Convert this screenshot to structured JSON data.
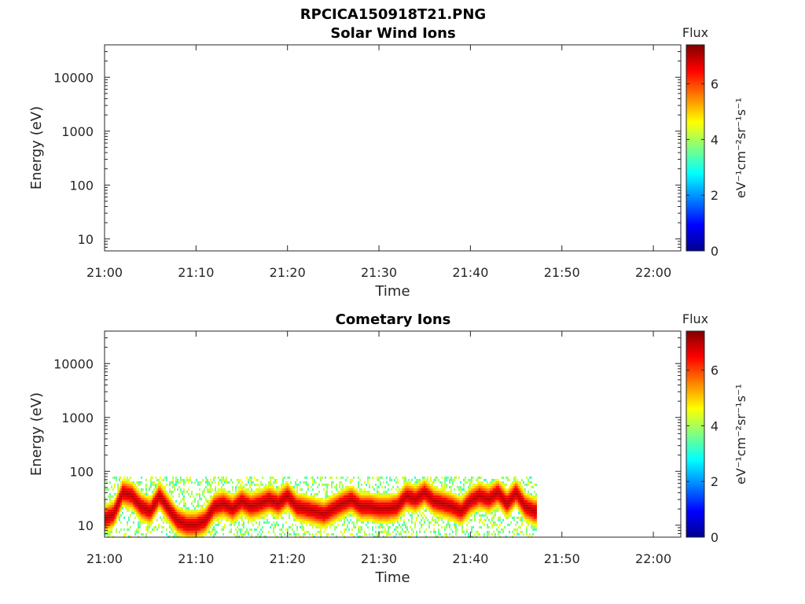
{
  "figure_title": "RPCICA150918T21.PNG",
  "colors": {
    "colormap": [
      "#00008f",
      "#0000ff",
      "#0080ff",
      "#00ffff",
      "#80ff80",
      "#ffff00",
      "#ff8000",
      "#ff0000",
      "#800000"
    ],
    "axis": "#262626"
  },
  "chart_data": [
    {
      "type": "heatmap",
      "title": "Solar Wind Ions",
      "xlabel": "Time",
      "ylabel": "Energy (eV)",
      "x_ticks": [
        "21:00",
        "21:10",
        "21:20",
        "21:30",
        "21:40",
        "21:50",
        "22:00"
      ],
      "x_range_minutes": [
        0,
        63
      ],
      "y_scale": "log",
      "y_range": [
        6,
        40000
      ],
      "y_ticks": [
        10,
        100,
        1000,
        10000
      ],
      "y_tick_labels": [
        "10",
        "100",
        "1000",
        "10000"
      ],
      "colorbar": {
        "title": "Flux",
        "unit": "eV⁻¹cm⁻²sr⁻¹s⁻¹",
        "range": [
          0,
          7.4
        ],
        "ticks": [
          0,
          2,
          4,
          6
        ],
        "tick_labels": [
          "0",
          "2",
          "4",
          "6"
        ]
      },
      "data_present": false,
      "peak_energy": []
    },
    {
      "type": "heatmap",
      "title": "Cometary Ions",
      "xlabel": "Time",
      "ylabel": "Energy (eV)",
      "x_ticks": [
        "21:00",
        "21:10",
        "21:20",
        "21:30",
        "21:40",
        "21:50",
        "22:00"
      ],
      "x_range_minutes": [
        0,
        63
      ],
      "y_scale": "log",
      "y_range": [
        6,
        40000
      ],
      "y_ticks": [
        10,
        100,
        1000,
        10000
      ],
      "y_tick_labels": [
        "10",
        "100",
        "1000",
        "10000"
      ],
      "colorbar": {
        "title": "Flux",
        "unit": "eV⁻¹cm⁻²sr⁻¹s⁻¹",
        "range": [
          0,
          7.4
        ],
        "ticks": [
          0,
          2,
          4,
          6
        ],
        "tick_labels": [
          "0",
          "2",
          "4",
          "6"
        ]
      },
      "data_present": true,
      "data_time_range_minutes": [
        0,
        47.2
      ],
      "data_energy_range_eV": [
        6,
        80
      ],
      "peak_energy": [
        {
          "t": 0,
          "e": 13
        },
        {
          "t": 1,
          "e": 16
        },
        {
          "t": 2,
          "e": 40
        },
        {
          "t": 3,
          "e": 35
        },
        {
          "t": 4,
          "e": 22
        },
        {
          "t": 5,
          "e": 18
        },
        {
          "t": 6,
          "e": 35
        },
        {
          "t": 7,
          "e": 20
        },
        {
          "t": 8,
          "e": 12
        },
        {
          "t": 9,
          "e": 10
        },
        {
          "t": 10,
          "e": 10
        },
        {
          "t": 11,
          "e": 12
        },
        {
          "t": 12,
          "e": 22
        },
        {
          "t": 13,
          "e": 25
        },
        {
          "t": 14,
          "e": 20
        },
        {
          "t": 15,
          "e": 28
        },
        {
          "t": 16,
          "e": 22
        },
        {
          "t": 17,
          "e": 25
        },
        {
          "t": 18,
          "e": 30
        },
        {
          "t": 19,
          "e": 25
        },
        {
          "t": 20,
          "e": 35
        },
        {
          "t": 21,
          "e": 22
        },
        {
          "t": 22,
          "e": 20
        },
        {
          "t": 23,
          "e": 18
        },
        {
          "t": 24,
          "e": 16
        },
        {
          "t": 25,
          "e": 20
        },
        {
          "t": 26,
          "e": 25
        },
        {
          "t": 27,
          "e": 30
        },
        {
          "t": 28,
          "e": 22
        },
        {
          "t": 29,
          "e": 22
        },
        {
          "t": 30,
          "e": 20
        },
        {
          "t": 31,
          "e": 20
        },
        {
          "t": 32,
          "e": 22
        },
        {
          "t": 33,
          "e": 35
        },
        {
          "t": 34,
          "e": 30
        },
        {
          "t": 35,
          "e": 40
        },
        {
          "t": 36,
          "e": 28
        },
        {
          "t": 37,
          "e": 25
        },
        {
          "t": 38,
          "e": 22
        },
        {
          "t": 39,
          "e": 18
        },
        {
          "t": 40,
          "e": 28
        },
        {
          "t": 41,
          "e": 35
        },
        {
          "t": 42,
          "e": 30
        },
        {
          "t": 43,
          "e": 40
        },
        {
          "t": 44,
          "e": 25
        },
        {
          "t": 45,
          "e": 40
        },
        {
          "t": 46,
          "e": 22
        },
        {
          "t": 47,
          "e": 18
        }
      ]
    }
  ]
}
